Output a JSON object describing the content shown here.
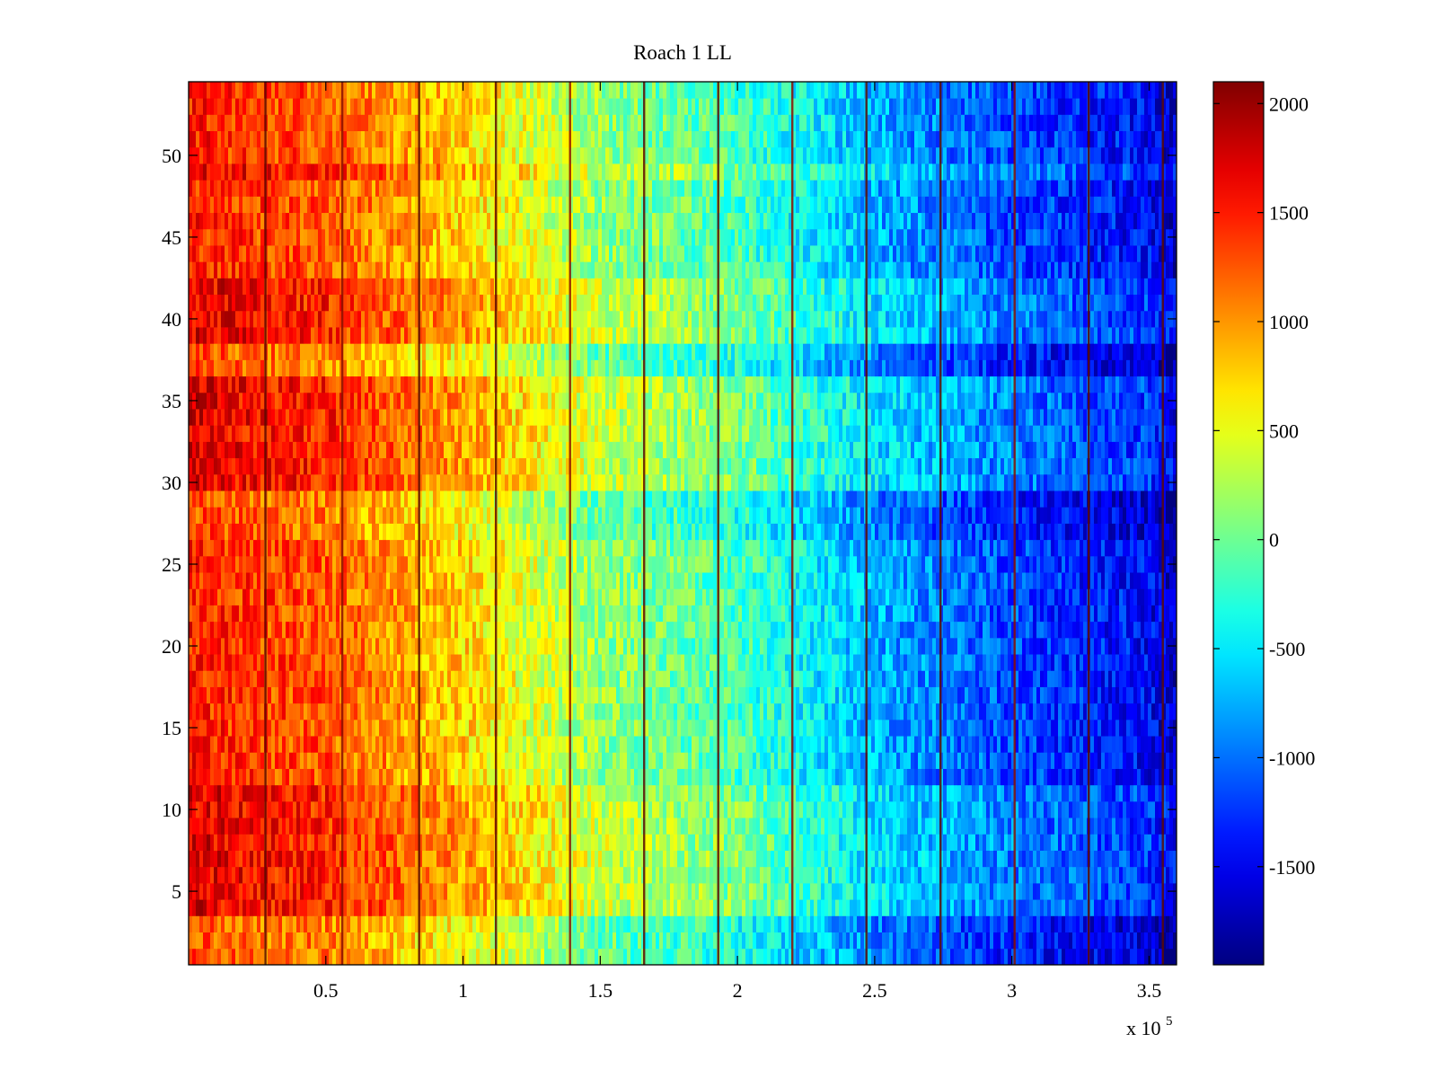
{
  "chart_data": {
    "type": "heatmap",
    "title": "Roach 1 LL",
    "xlabel": "",
    "ylabel": "",
    "x_multiplier_label": "x 10",
    "x_multiplier_exponent": "5",
    "xlim": [
      0,
      3.6
    ],
    "ylim": [
      0.5,
      54.5
    ],
    "xticks": [
      0.5,
      1,
      1.5,
      2,
      2.5,
      3,
      3.5
    ],
    "xtick_labels": [
      "0.5",
      "1",
      "1.5",
      "2",
      "2.5",
      "3",
      "3.5"
    ],
    "yticks": [
      5,
      10,
      15,
      20,
      25,
      30,
      35,
      40,
      45,
      50
    ],
    "ytick_labels": [
      "5",
      "10",
      "15",
      "20",
      "25",
      "30",
      "35",
      "40",
      "45",
      "50"
    ],
    "rows": 54,
    "color_range": [
      -1950,
      2100
    ],
    "colormap": "jet",
    "colorbar_ticks": [
      2000,
      1500,
      1000,
      500,
      0,
      -500,
      -1000,
      -1500
    ],
    "colorbar_tick_labels": [
      "2000",
      "1500",
      "1000",
      "500",
      "0",
      "-500",
      "-1000",
      "-1500"
    ],
    "trend_profile": {
      "x": [
        0,
        0.25,
        0.5,
        0.75,
        1.0,
        1.25,
        1.5,
        1.75,
        2.0,
        2.25,
        2.5,
        2.75,
        3.0,
        3.25,
        3.5,
        3.6
      ],
      "value": [
        1500,
        1350,
        1250,
        1000,
        750,
        450,
        150,
        0,
        -150,
        -450,
        -750,
        -950,
        -1150,
        -1300,
        -1450,
        -1700
      ]
    },
    "segment_boundaries": [
      0.28,
      0.56,
      0.84,
      1.12,
      1.39,
      1.66,
      1.93,
      2.2,
      2.47,
      2.74,
      3.01,
      3.28,
      3.55
    ],
    "row_offsets": {
      "rows_high": [
        4,
        5,
        6,
        7,
        8,
        9,
        10,
        11,
        30,
        31,
        32,
        33,
        34,
        35,
        36,
        39,
        40,
        41,
        42,
        49
      ],
      "rows_low": [
        1,
        2,
        3,
        27,
        28,
        29,
        37,
        38
      ],
      "high_delta": 220,
      "low_delta": -180
    }
  }
}
